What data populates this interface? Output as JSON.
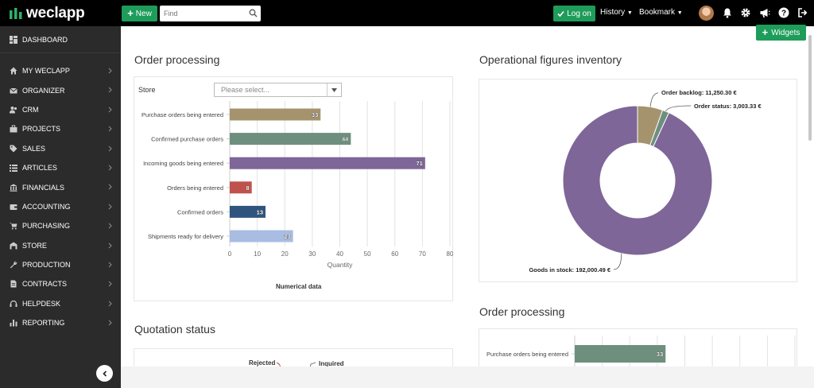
{
  "topbar": {
    "logo_text": "weclapp",
    "new_label": "New",
    "search_placeholder": "Find",
    "login_label": "Log on",
    "history_label": "History",
    "bookmark_label": "Bookmark"
  },
  "sidebar": {
    "dashboard_label": "DASHBOARD",
    "items": [
      {
        "label": "MY WECLAPP",
        "icon": "home-icon"
      },
      {
        "label": "ORGANIZER",
        "icon": "envelope-icon"
      },
      {
        "label": "CRM",
        "icon": "users-icon"
      },
      {
        "label": "PROJECTS",
        "icon": "briefcase-icon"
      },
      {
        "label": "SALES",
        "icon": "tag-icon"
      },
      {
        "label": "ARTICLES",
        "icon": "list-icon"
      },
      {
        "label": "FINANCIALS",
        "icon": "bank-icon"
      },
      {
        "label": "ACCOUNTING",
        "icon": "wallet-icon"
      },
      {
        "label": "PURCHASING",
        "icon": "cart-icon"
      },
      {
        "label": "STORE",
        "icon": "warehouse-icon"
      },
      {
        "label": "PRODUCTION",
        "icon": "wrench-icon"
      },
      {
        "label": "CONTRACTS",
        "icon": "document-icon"
      },
      {
        "label": "HELPDESK",
        "icon": "headset-icon"
      },
      {
        "label": "REPORTING",
        "icon": "bar-chart-icon"
      }
    ]
  },
  "main": {
    "widgets_label": "Widgets",
    "order_processing": {
      "title": "Order processing",
      "store_label": "Store",
      "store_placeholder": "Please select...",
      "footer": "Numerical data"
    },
    "inventory": {
      "title": "Operational figures inventory"
    },
    "quotation": {
      "title": "Quotation status",
      "label_rejected": "Rejected",
      "label_inquired": "Inquired"
    },
    "order_processing_2": {
      "title": "Order processing"
    }
  },
  "chart_data": [
    {
      "type": "bar",
      "orientation": "horizontal",
      "categories": [
        "Purchase orders being entered",
        "Confirmed purchase orders",
        "Incoming goods being entered",
        "Orders being entered",
        "Confirmed orders",
        "Shipments ready for delivery"
      ],
      "values": [
        33,
        44,
        71,
        8,
        13,
        23
      ],
      "colors": [
        "#a4936d",
        "#6e8f7e",
        "#7e6698",
        "#c0524e",
        "#2f557f",
        "#a9bde3"
      ],
      "xlabel": "Quantity",
      "xticks": [
        0,
        10,
        20,
        30,
        40,
        50,
        60,
        70,
        80
      ],
      "xlim": [
        0,
        80
      ],
      "grid": true
    },
    {
      "type": "pie",
      "donut": true,
      "slices": [
        {
          "label": "Order backlog: 11,250.30 €",
          "value": 11250.3,
          "color": "#a4936d"
        },
        {
          "label": "Order status: 3,003.33 €",
          "value": 3003.33,
          "color": "#6e8f7e"
        },
        {
          "label": "Goods in stock: 192,000.49 €",
          "value": 192000.49,
          "color": "#7e6698"
        }
      ]
    },
    {
      "type": "bar",
      "orientation": "horizontal",
      "categories": [
        "Purchase orders being entered"
      ],
      "values": [
        33
      ],
      "colors": [
        "#6e8f7e"
      ]
    }
  ]
}
